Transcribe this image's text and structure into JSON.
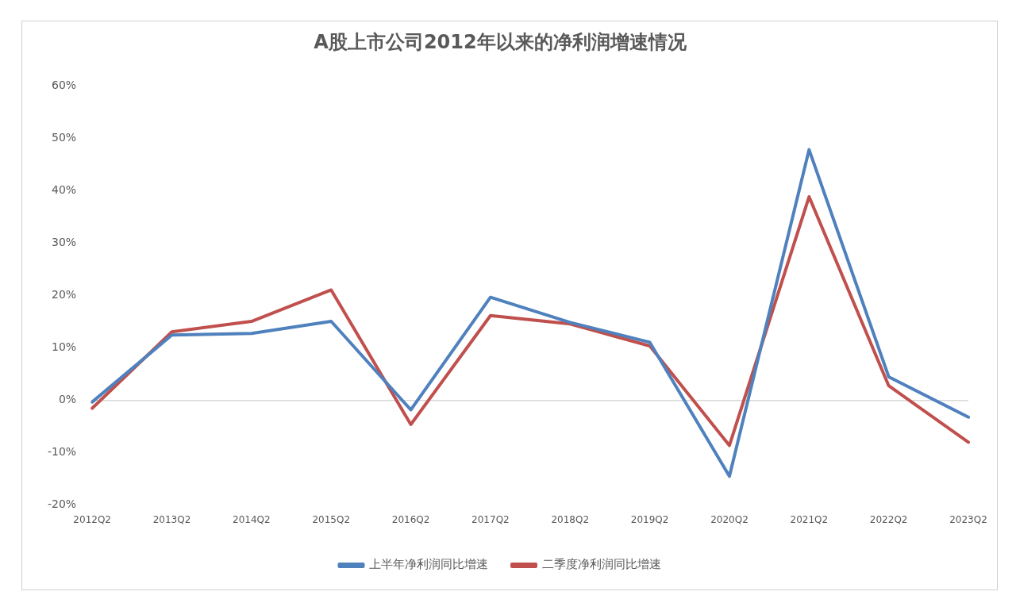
{
  "chart_data": {
    "type": "line",
    "title": "A股上市公司2012年以来的净利润增速情况",
    "categories": [
      "2012Q2",
      "2013Q2",
      "2014Q2",
      "2015Q2",
      "2016Q2",
      "2017Q2",
      "2018Q2",
      "2019Q2",
      "2020Q2",
      "2021Q2",
      "2022Q2",
      "2023Q2"
    ],
    "series": [
      {
        "name": "上半年净利润同比增速",
        "color": "#4f81bd",
        "values": [
          -0.3,
          12.5,
          12.8,
          15.1,
          -1.8,
          19.7,
          14.9,
          11.1,
          -14.5,
          47.9,
          4.5,
          -3.2
        ]
      },
      {
        "name": "二季度净利润同比增速",
        "color": "#c0504d",
        "values": [
          -1.5,
          13.1,
          15.1,
          21.1,
          -4.6,
          16.2,
          14.6,
          10.4,
          -8.6,
          38.9,
          2.8,
          -8.0
        ]
      }
    ],
    "ylim": [
      -20,
      60
    ],
    "yticks": [
      {
        "value": -20,
        "label": "-20%"
      },
      {
        "value": -10,
        "label": "-10%"
      },
      {
        "value": 0,
        "label": "0%"
      },
      {
        "value": 10,
        "label": "10%"
      },
      {
        "value": 20,
        "label": "20%"
      },
      {
        "value": 30,
        "label": "30%"
      },
      {
        "value": 40,
        "label": "40%"
      },
      {
        "value": 50,
        "label": "50%"
      },
      {
        "value": 60,
        "label": "60%"
      }
    ],
    "ref_lines": [
      {
        "axis": "y",
        "value": 0,
        "color": "#d9d9d9"
      }
    ],
    "grid": false,
    "legend": "bottom",
    "marker": "none",
    "line_style": "solid"
  }
}
